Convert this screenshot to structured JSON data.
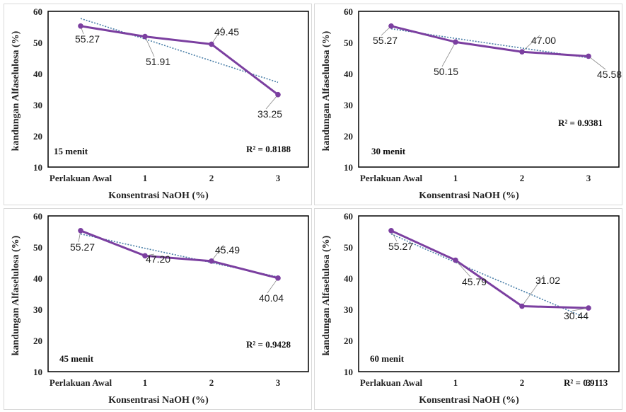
{
  "chart_data": [
    {
      "type": "line",
      "panel_label": "15 menit",
      "categories": [
        "Perlakuan Awal",
        "1",
        "2",
        "3"
      ],
      "values": [
        55.27,
        51.91,
        49.45,
        33.25
      ],
      "value_labels": [
        "55.27",
        "51.91",
        "49.45",
        "33.25"
      ],
      "trendline": [
        57.7,
        51.1,
        44.1,
        37.2
      ],
      "r2_label": "R² = 0.8188",
      "xlabel": "Konsentrasi NaOH (%)",
      "ylabel": "kandungan Alfaselulosa (%)",
      "ylim": [
        10,
        60
      ],
      "yticks": [
        "10",
        "20",
        "30",
        "40",
        "50",
        "60"
      ],
      "series_color": "#7b3fa0",
      "trend_color": "#4a7fa8"
    },
    {
      "type": "line",
      "panel_label": "30 menit",
      "categories": [
        "Perlakuan Awal",
        "1",
        "2",
        "3"
      ],
      "values": [
        55.27,
        50.15,
        47.0,
        45.58
      ],
      "value_labels": [
        "55.27",
        "50.15",
        "47.00",
        "45.58"
      ],
      "trendline": [
        54.4,
        51.3,
        48.2,
        45.1
      ],
      "r2_label": "R² = 0.9381",
      "xlabel": "Konsentrasi NaOH (%)",
      "ylabel": "kandungan Alfaselulosa (%)",
      "ylim": [
        10,
        60
      ],
      "yticks": [
        "10",
        "20",
        "30",
        "40",
        "50",
        "60"
      ],
      "series_color": "#7b3fa0",
      "trend_color": "#4a7fa8"
    },
    {
      "type": "line",
      "panel_label": "45 menit",
      "categories": [
        "Perlakuan Awal",
        "1",
        "2",
        "3"
      ],
      "values": [
        55.27,
        47.2,
        45.49,
        40.04
      ],
      "value_labels": [
        "55.27",
        "47.20",
        "45.49",
        "40.04"
      ],
      "trendline": [
        54.2,
        49.6,
        45.0,
        40.4
      ],
      "r2_label": "R² = 0.9428",
      "xlabel": "Konsentrasi NaOH (%)",
      "ylabel": "kandungan Alfaselulosa (%)",
      "ylim": [
        10,
        60
      ],
      "yticks": [
        "10",
        "20",
        "30",
        "40",
        "50",
        "60"
      ],
      "series_color": "#7b3fa0",
      "trend_color": "#4a7fa8"
    },
    {
      "type": "line",
      "panel_label": "60 menit",
      "categories": [
        "Perlakuan Awal",
        "1",
        "2",
        "3"
      ],
      "values": [
        55.27,
        45.79,
        31.02,
        30.44
      ],
      "value_labels": [
        "55.27",
        "45.79",
        "31.02",
        "30.44"
      ],
      "trendline": [
        54.2,
        45.1,
        36.0,
        26.9
      ],
      "r2_label": "R² = 0.9113",
      "xlabel": "Konsentrasi NaOH (%)",
      "ylabel": "kandungan Alfaselulosa (%)",
      "ylim": [
        10,
        60
      ],
      "yticks": [
        "10",
        "20",
        "30",
        "40",
        "50",
        "60"
      ],
      "series_color": "#7b3fa0",
      "trend_color": "#4a7fa8"
    }
  ]
}
